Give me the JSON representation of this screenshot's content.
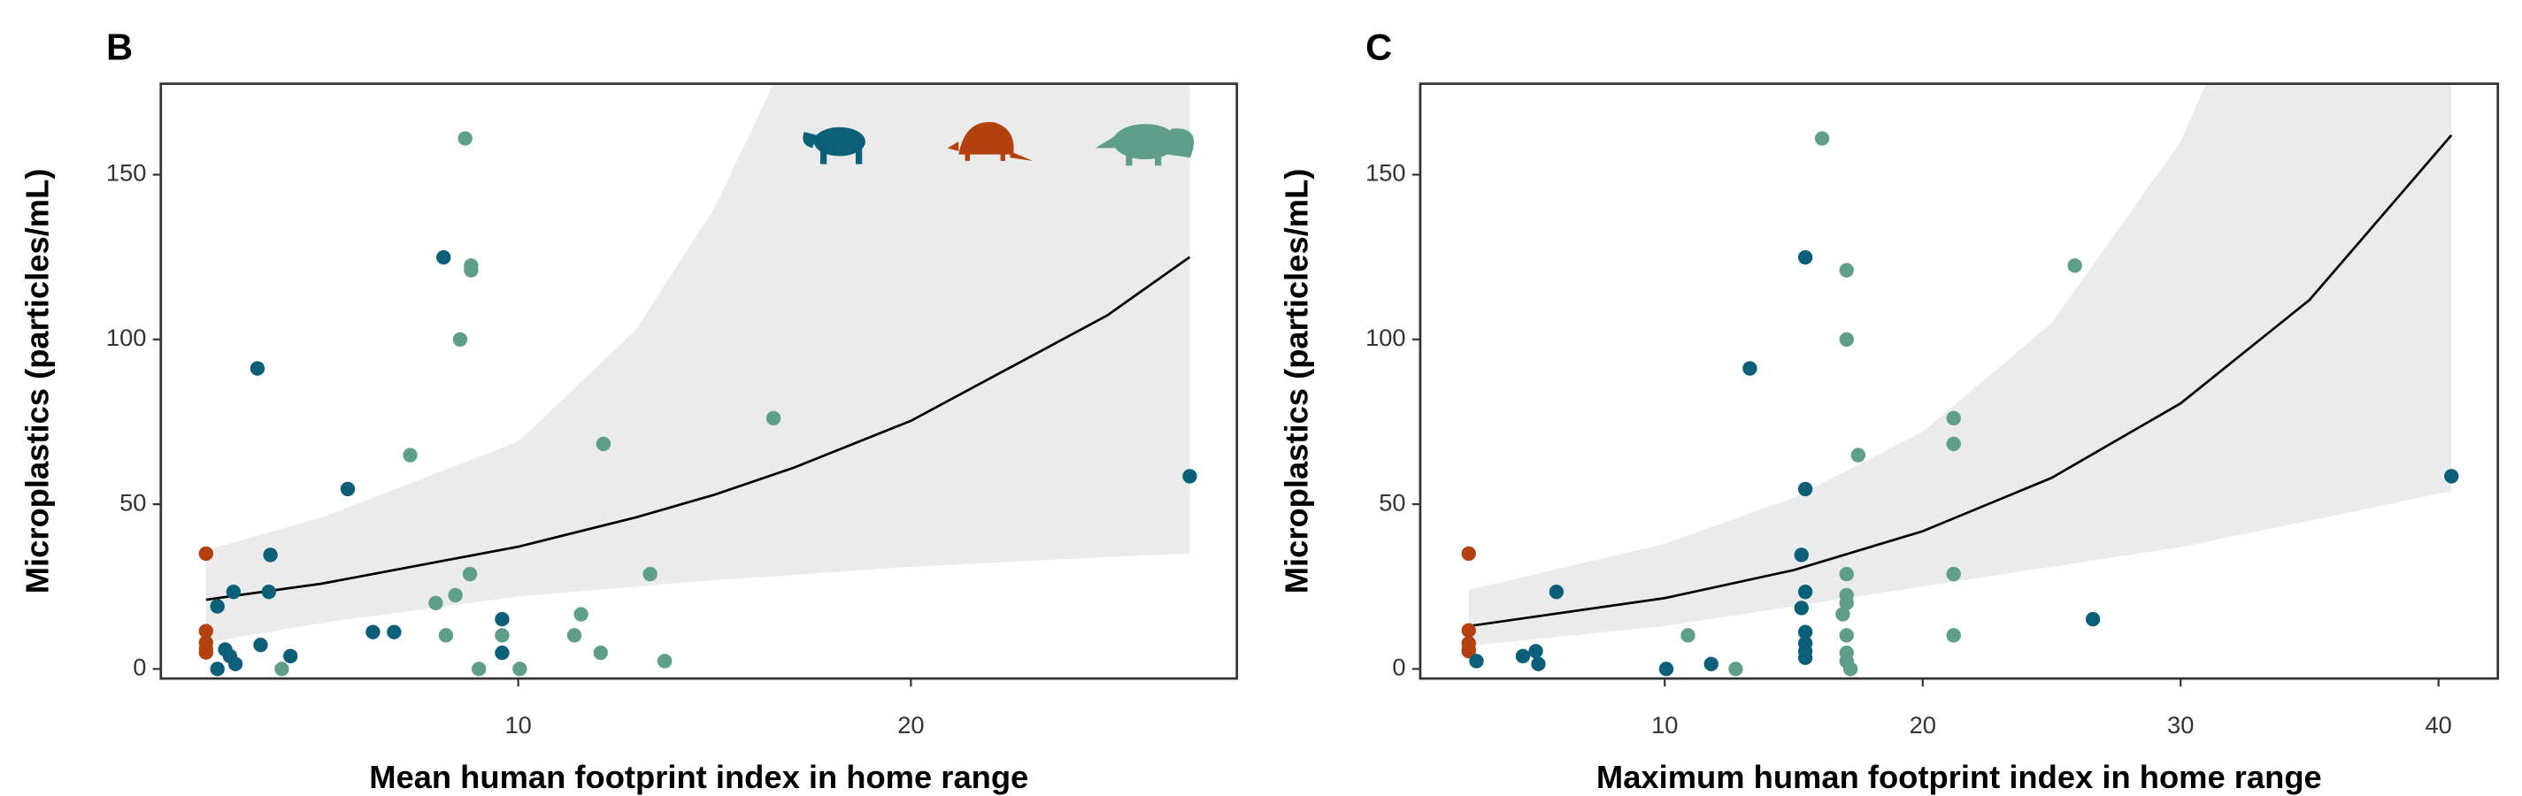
{
  "chart_data": [
    {
      "type": "scatter",
      "panel": "B",
      "x_label": "Mean human footprint index in home range",
      "y_label": "Microplastics (particles/mL)",
      "xlim": [
        0.9,
        28.3
      ],
      "ylim": [
        -2.9,
        177.6
      ],
      "xticks": [
        10,
        20
      ],
      "yticks": [
        0,
        50,
        100,
        150
      ],
      "series": [
        {
          "color": "#b5400f",
          "x": [
            2.05,
            2.05,
            2.05,
            2.05,
            2.05
          ],
          "values": [
            35,
            11.5,
            8,
            6,
            5
          ]
        },
        {
          "color": "#0b5f78",
          "x": [
            2.34,
            2.75,
            3.36,
            3.69,
            3.65,
            3.44,
            2.54,
            2.66,
            2.8,
            2.34,
            4.2,
            5.66,
            6.3,
            6.84,
            8.1,
            9.59,
            9.59,
            27.1
          ],
          "values": [
            19,
            23.4,
            91.2,
            34.6,
            23.4,
            7.3,
            5.9,
            3.9,
            1.5,
            0,
            3.9,
            54.6,
            11.2,
            11.2,
            124.9,
            15.1,
            4.9,
            58.5
          ]
        },
        {
          "color": "#5f9e8a",
          "x": [
            8.65,
            8.8,
            8.8,
            8.52,
            7.25,
            8.77,
            8.4,
            7.9,
            8.16,
            9.0,
            9.59,
            10.04,
            3.98,
            11.43,
            11.6,
            12.1,
            12.17,
            13.36,
            13.73,
            16.5
          ],
          "values": [
            161,
            122.4,
            121,
            100,
            64.9,
            28.8,
            22.4,
            20,
            10.2,
            0,
            10.2,
            0,
            0,
            10.2,
            16.6,
            4.9,
            68.3,
            28.8,
            2.4,
            76.1
          ]
        }
      ],
      "fit": {
        "color": "#000000",
        "band_color": "#ebebeb",
        "x": [
          2.05,
          5,
          10,
          13,
          15,
          17,
          20,
          25,
          27.1
        ],
        "values": [
          21,
          25.9,
          37.1,
          46,
          52.9,
          61,
          75.3,
          107.3,
          125
        ],
        "lower": [
          8,
          14,
          22,
          25,
          27,
          28.5,
          31,
          34,
          35
        ],
        "upper": [
          36,
          46,
          69,
          103,
          140,
          190,
          300,
          600,
          800
        ]
      }
    },
    {
      "type": "scatter",
      "panel": "C",
      "x_label": "Maximum human footprint index in home range",
      "y_label": "Microplastics (particles/mL)",
      "xlim": [
        0.52,
        42.3
      ],
      "ylim": [
        -2.9,
        177.6
      ],
      "xticks": [
        10,
        20,
        30,
        40
      ],
      "yticks": [
        0,
        50,
        100,
        150
      ],
      "series": [
        {
          "color": "#b5400f",
          "x": [
            2.4,
            2.4,
            2.4,
            2.4,
            2.4
          ],
          "values": [
            35,
            11.7,
            7.8,
            5.9,
            5.4
          ]
        },
        {
          "color": "#0b5f78",
          "x": [
            2.7,
            4.5,
            5.0,
            5.1,
            5.8,
            10.06,
            11.8,
            13.3,
            15.45,
            15.45,
            15.3,
            15.3,
            15.45,
            15.45,
            15.45,
            15.45,
            15.45,
            26.6,
            40.5
          ],
          "values": [
            2.4,
            3.9,
            5.4,
            1.5,
            23.4,
            0,
            1.5,
            91.2,
            124.9,
            54.6,
            34.6,
            18.5,
            23.4,
            11.2,
            7.8,
            5.4,
            3.4,
            15.1,
            58.5
          ]
        },
        {
          "color": "#5f9e8a",
          "x": [
            16.1,
            17.05,
            17.05,
            17.5,
            25.9,
            21.2,
            21.2,
            21.2,
            21.2,
            17.05,
            17.05,
            17.05,
            16.9,
            17.05,
            17.05,
            17.05,
            17.2,
            10.9,
            12.75
          ],
          "values": [
            161,
            121,
            100,
            64.9,
            122.4,
            76.1,
            68.3,
            28.8,
            10.2,
            28.8,
            22.4,
            20,
            16.6,
            10.2,
            4.9,
            2.4,
            0,
            10.2,
            0
          ]
        }
      ],
      "fit": {
        "color": "#000000",
        "band_color": "#ebebeb",
        "x": [
          2.4,
          10,
          15,
          20,
          25,
          30,
          35,
          40.5
        ],
        "values": [
          13,
          21.5,
          30,
          41.8,
          58,
          80.6,
          112,
          162
        ],
        "lower": [
          7,
          13,
          19,
          25,
          31,
          37,
          45,
          54
        ],
        "upper": [
          24,
          38,
          52,
          72,
          105,
          160,
          250,
          400
        ]
      }
    }
  ]
}
